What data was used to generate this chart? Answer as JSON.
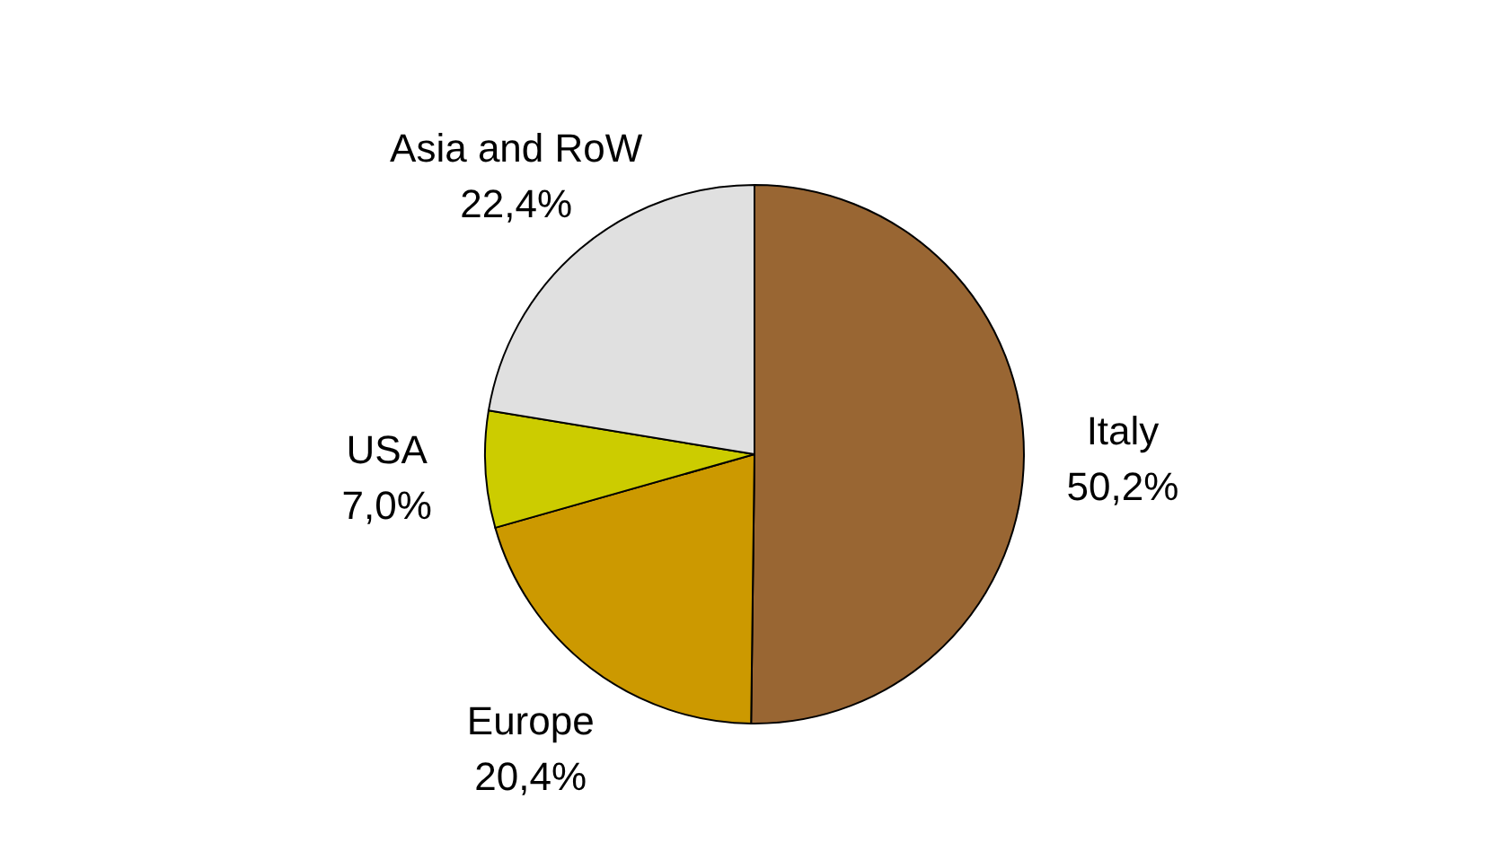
{
  "chart_data": {
    "type": "pie",
    "categories": [
      "Italy",
      "Europe",
      "USA",
      "Asia and RoW"
    ],
    "values": [
      50.2,
      20.4,
      7.0,
      22.4
    ],
    "value_labels": [
      "50,2%",
      "20,4%",
      "7,0%",
      "22,4%"
    ],
    "colors": [
      "#996633",
      "#cc9900",
      "#cccc00",
      "#e0e0e0"
    ]
  }
}
